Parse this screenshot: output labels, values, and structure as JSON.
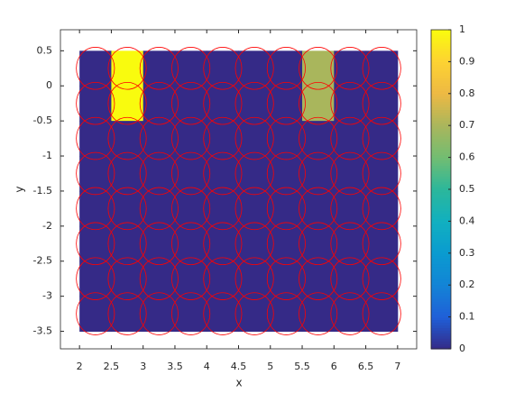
{
  "chart_data": {
    "type": "heatmap",
    "xlabel": "x",
    "ylabel": "y",
    "x_edges": [
      2,
      2.5,
      3,
      3.5,
      4,
      4.5,
      5,
      5.5,
      6,
      6.5,
      7
    ],
    "y_edges": [
      0.5,
      0,
      -0.5,
      -1,
      -1.5,
      -2,
      -2.5,
      -3,
      -3.5
    ],
    "values": [
      [
        0,
        1,
        0,
        0,
        0,
        0,
        0,
        0.7,
        0,
        0
      ],
      [
        0,
        1,
        0,
        0,
        0,
        0,
        0,
        0.7,
        0,
        0
      ],
      [
        0,
        0,
        0,
        0,
        0,
        0,
        0,
        0,
        0,
        0
      ],
      [
        0,
        0,
        0,
        0,
        0,
        0,
        0,
        0,
        0,
        0
      ],
      [
        0,
        0,
        0,
        0,
        0,
        0,
        0,
        0,
        0,
        0
      ],
      [
        0,
        0,
        0,
        0,
        0,
        0,
        0,
        0,
        0,
        0
      ],
      [
        0,
        0,
        0,
        0,
        0,
        0,
        0,
        0,
        0,
        0
      ],
      [
        0,
        0,
        0,
        0,
        0,
        0,
        0,
        0,
        0,
        0
      ]
    ],
    "circles": {
      "x": [
        2.25,
        2.75,
        3.25,
        3.75,
        4.25,
        4.75,
        5.25,
        5.75,
        6.25,
        6.75
      ],
      "y": [
        0.25,
        -0.25,
        -0.75,
        -1.25,
        -1.75,
        -2.25,
        -2.75,
        -3.25
      ],
      "radius": 0.3,
      "color": "#ff0000"
    },
    "xlim": [
      1.7,
      7.3
    ],
    "ylim": [
      -3.75,
      0.8
    ],
    "xticks": [
      2,
      2.5,
      3,
      3.5,
      4,
      4.5,
      5,
      5.5,
      6,
      6.5,
      7
    ],
    "yticks": [
      0.5,
      0,
      -0.5,
      -1,
      -1.5,
      -2,
      -2.5,
      -3,
      -3.5
    ],
    "colorbar": {
      "lim": [
        0,
        1
      ],
      "ticks": [
        0,
        0.1,
        0.2,
        0.3,
        0.4,
        0.5,
        0.6,
        0.7,
        0.8,
        0.9,
        1
      ]
    },
    "colormap": [
      "#352a87",
      "#1f5fd8",
      "#1384d6",
      "#0a9bd0",
      "#11b0c0",
      "#2bb79b",
      "#72bd72",
      "#a9b65c",
      "#edb944",
      "#fdd232",
      "#f9fb0e"
    ]
  }
}
